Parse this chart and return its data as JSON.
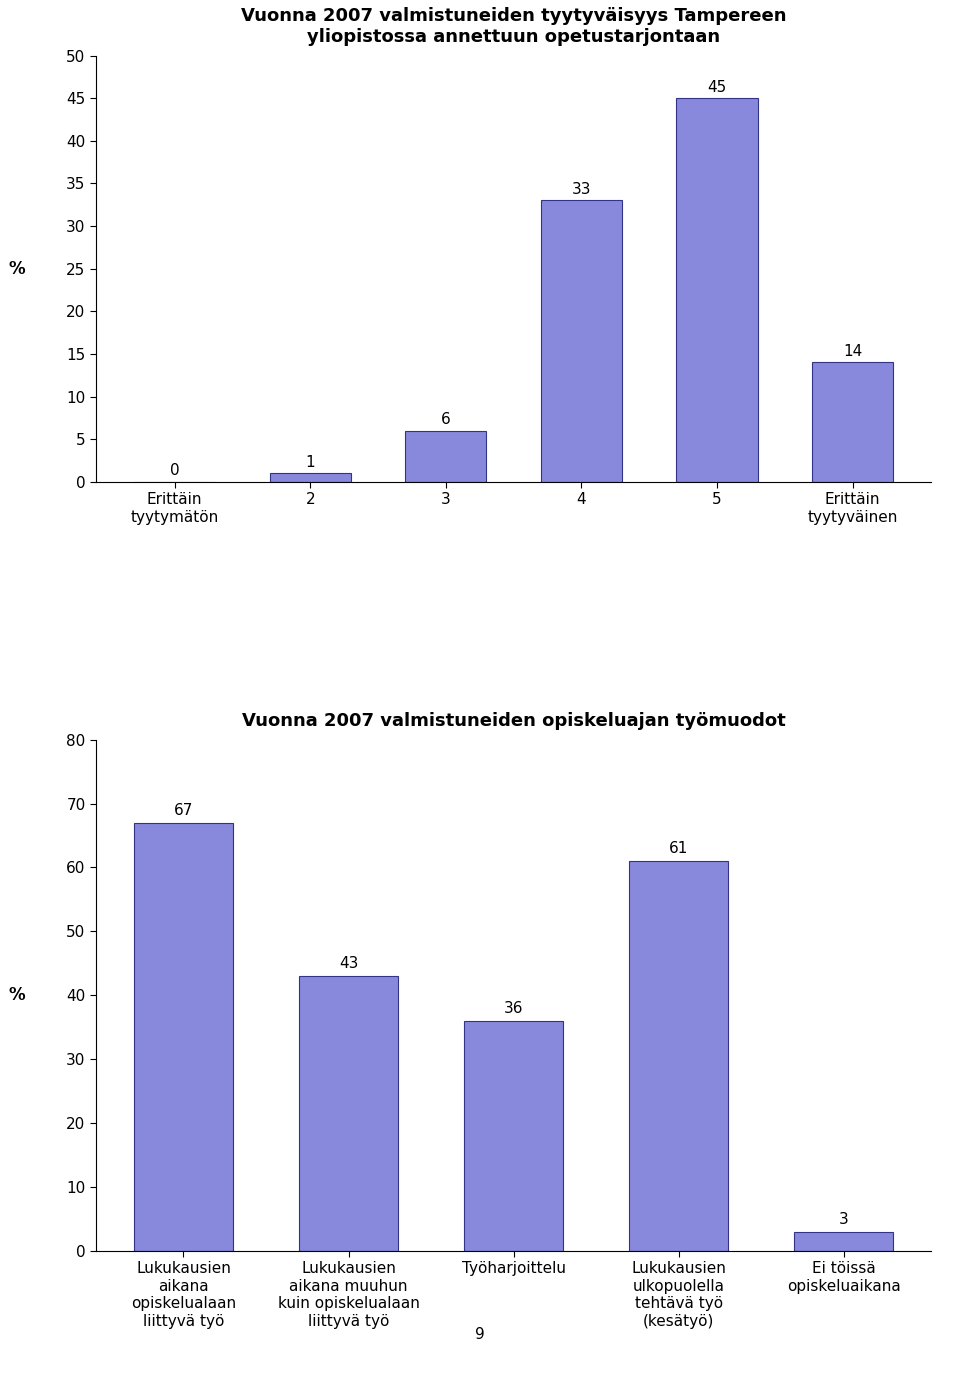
{
  "chart1": {
    "title": "Vuonna 2007 valmistuneiden tyytyväisyys Tampereen\nyliopistossa annettuun opetustarjontaan",
    "categories": [
      "Erittäin\ntyytymätön",
      "2",
      "3",
      "4",
      "5",
      "Erittäin\ntyytyväinen"
    ],
    "values": [
      0,
      1,
      6,
      33,
      45,
      14
    ],
    "ylabel": "%",
    "ylabel_tick": 25,
    "ylim": [
      0,
      50
    ],
    "yticks": [
      0,
      5,
      10,
      15,
      20,
      25,
      30,
      35,
      40,
      45,
      50
    ]
  },
  "chart2": {
    "title": "Vuonna 2007 valmistuneiden opiskeluajan työmuodot",
    "categories": [
      "Lukukausien\naikana\nopiskelualaan\nliittyvä työ",
      "Lukukausien\naikana muuhun\nkuin opiskelualaan\nliittyvä työ",
      "Työharjoittelu",
      "Lukukausien\nulkopuolella\ntehtävä työ\n(kesätyö)",
      "Ei töissä\nopiskeluaikana"
    ],
    "values": [
      67,
      43,
      36,
      61,
      3
    ],
    "ylabel": "%",
    "ylabel_tick": 40,
    "ylim": [
      0,
      80
    ],
    "yticks": [
      0,
      10,
      20,
      30,
      40,
      50,
      60,
      70,
      80
    ]
  },
  "page_number": "9",
  "background_color": "#ffffff",
  "bar_color": "#8888dd",
  "bar_edge_color": "#333388",
  "title_fontsize": 13,
  "tick_fontsize": 11,
  "value_fontsize": 11,
  "ylabel_fontsize": 12
}
